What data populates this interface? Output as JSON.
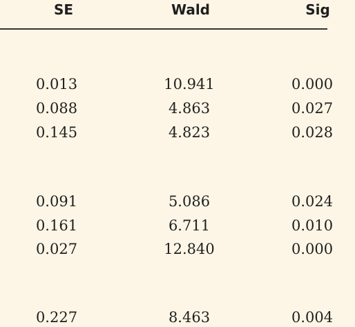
{
  "table": {
    "headers": {
      "se": "SE",
      "wald": "Wald",
      "sig": "Sig"
    },
    "rows": [
      {
        "se": "0.013",
        "wald": "10.941",
        "sig": "0.000"
      },
      {
        "se": "0.088",
        "wald": "4.863",
        "sig": "0.027"
      },
      {
        "se": "0.145",
        "wald": "4.823",
        "sig": "0.028"
      },
      {
        "se": "0.091",
        "wald": "5.086",
        "sig": "0.024"
      },
      {
        "se": "0.161",
        "wald": "6.711",
        "sig": "0.010"
      },
      {
        "se": "0.027",
        "wald": "12.840",
        "sig": "0.000"
      },
      {
        "se": "0.227",
        "wald": "8.463",
        "sig": "0.004"
      }
    ]
  },
  "colors": {
    "background": "#fdf6e6",
    "text": "#1f1f1f",
    "rule": "#333333"
  }
}
